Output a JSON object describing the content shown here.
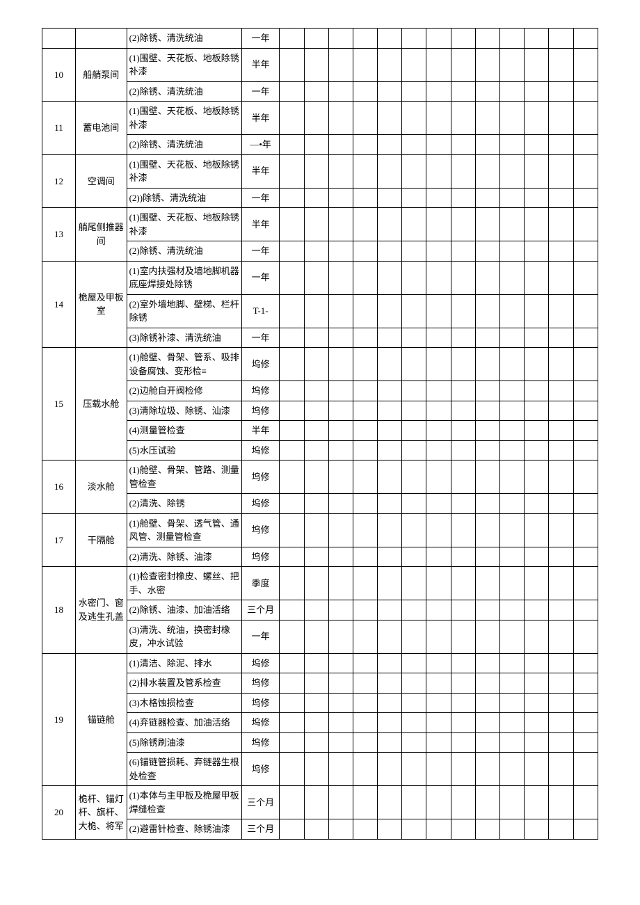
{
  "colors": {
    "border": "#000000",
    "text": "#000000",
    "background": "#ffffff"
  },
  "font_size_pt": 10,
  "blank_columns": 13,
  "rows": [
    {
      "num": "",
      "area": "",
      "tasks": [
        {
          "text": "(2)除锈、清洗统油",
          "period": "一年"
        }
      ]
    },
    {
      "num": "10",
      "area": "船艄泵间",
      "tasks": [
        {
          "text": "(1)围壁、天花板、地板除锈补漆",
          "period": "半年"
        },
        {
          "text": "(2)除锈、清洗统油",
          "period": "一年"
        }
      ]
    },
    {
      "num": "11",
      "area": "蓄电池间",
      "tasks": [
        {
          "text": "(1)围壁、天花板、地板除锈补漆",
          "period": "半年"
        },
        {
          "text": "(2)除锈、清洗统油",
          "period": "—•年"
        }
      ]
    },
    {
      "num": "12",
      "area": "空调间",
      "tasks": [
        {
          "text": "(1)围壁、天花板、地板除锈补漆",
          "period": "半年"
        },
        {
          "text": "(2))除锈、清洗统油",
          "period": "一年"
        }
      ]
    },
    {
      "num": "13",
      "area": "艄尾侧推器间",
      "tasks": [
        {
          "text": "(1)围壁、天花板、地板除锈补漆",
          "period": "半年"
        },
        {
          "text": "(2)除锈、清洗统油",
          "period": "一年"
        }
      ]
    },
    {
      "num": "14",
      "area": "桅屋及甲板室",
      "tasks": [
        {
          "text": "(1)室内扶强材及墙地脚机器底座焊接处除锈",
          "period": "一年"
        },
        {
          "text": "(2)室外墙地脚、壁梯、栏杆除锈",
          "period": "T-1-"
        },
        {
          "text": "(3)除锈补漆、清洗统油",
          "period": "一年"
        }
      ]
    },
    {
      "num": "15",
      "area": "压载水舱",
      "tasks": [
        {
          "text": "(1)舱壁、骨架、管系、吸排设备腐蚀、变形检≡",
          "period": "坞修"
        },
        {
          "text": "(2)边舱自开阀检修",
          "period": "坞修"
        },
        {
          "text": "(3)清除垃圾、除锈、汕漆",
          "period": "坞修"
        },
        {
          "text": "(4)测量管检查",
          "period": "半年"
        },
        {
          "text": "(5)水压试验",
          "period": "坞修"
        }
      ]
    },
    {
      "num": "16",
      "area": "淡水舱",
      "tasks": [
        {
          "text": "(1)舱壁、骨架、管路、测量管检查",
          "period": "坞修"
        },
        {
          "text": "(2)清洗、除锈",
          "period": "坞修"
        }
      ]
    },
    {
      "num": "17",
      "area": "干隔舱",
      "tasks": [
        {
          "text": "(1)舱壁、骨架、透气管、通风管、测量管检查",
          "period": "坞修"
        },
        {
          "text": "(2)清洗、除锈、油漆",
          "period": "坞修"
        }
      ]
    },
    {
      "num": "18",
      "area": "水密门、窗及逃生孔盖",
      "tasks": [
        {
          "text": "(1)检查密封橡皮、螺丝、把手、水密",
          "period": "季度"
        },
        {
          "text": "(2)除锈、油漆、加油活络",
          "period": "三个月"
        },
        {
          "text": "(3)清洗、统油，换密封橡皮，冲水试验",
          "period": "一年"
        }
      ]
    },
    {
      "num": "19",
      "area": "锚链舱",
      "tasks": [
        {
          "text": "(1)清洁、除泥、排水",
          "period": "坞修"
        },
        {
          "text": "(2)排水装置及管系检查",
          "period": "坞修"
        },
        {
          "text": "(3)木格蚀损检查",
          "period": "坞修"
        },
        {
          "text": "(4)弃链器检查、加油活络",
          "period": "坞修"
        },
        {
          "text": "(5)除锈刷油漆",
          "period": "坞修"
        },
        {
          "text": "(6)锚链管损耗、弃链器生根处检查",
          "period": "坞修"
        }
      ]
    },
    {
      "num": "20",
      "area": "桅杆、锚灯杆、旗杆、大桅、将军",
      "tasks": [
        {
          "text": "(1)本体与主甲板及桅屋甲板焊缝检查",
          "period": "三个月"
        },
        {
          "text": "(2)避雷针检查、除锈油漆",
          "period": "三个月"
        }
      ]
    }
  ]
}
